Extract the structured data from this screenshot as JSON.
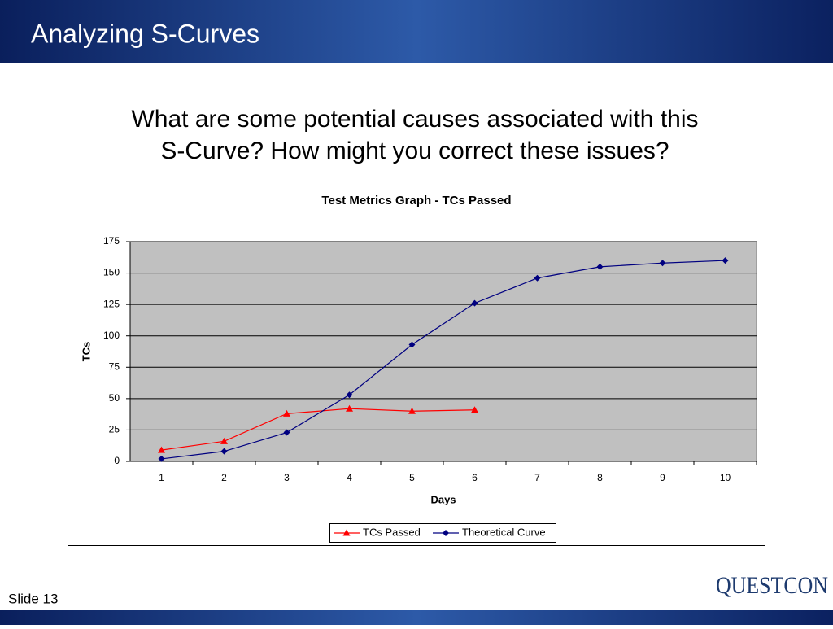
{
  "slide": {
    "title": "Analyzing S-Curves",
    "question": [
      "What are some potential causes associated with this",
      "S-Curve?  How might you correct these issues?"
    ],
    "footer": "Slide 13",
    "logo": "QUESTCON"
  },
  "chart_data": {
    "type": "line",
    "title": "Test Metrics Graph - TCs Passed",
    "xlabel": "Days",
    "ylabel": "TCs",
    "categories": [
      1,
      2,
      3,
      4,
      5,
      6,
      7,
      8,
      9,
      10
    ],
    "series": [
      {
        "name": "TCs Passed",
        "color": "#ff0000",
        "marker": "triangle",
        "values": [
          9,
          16,
          38,
          42,
          40,
          41,
          null,
          null,
          null,
          null
        ]
      },
      {
        "name": "Theoretical Curve",
        "color": "#000080",
        "marker": "diamond",
        "values": [
          2,
          8,
          23,
          53,
          93,
          126,
          146,
          155,
          158,
          160
        ]
      }
    ],
    "ylim": [
      0,
      175
    ],
    "yticks": [
      0,
      25,
      50,
      75,
      100,
      125,
      150,
      175
    ],
    "grid": true,
    "legend": "bottom"
  }
}
